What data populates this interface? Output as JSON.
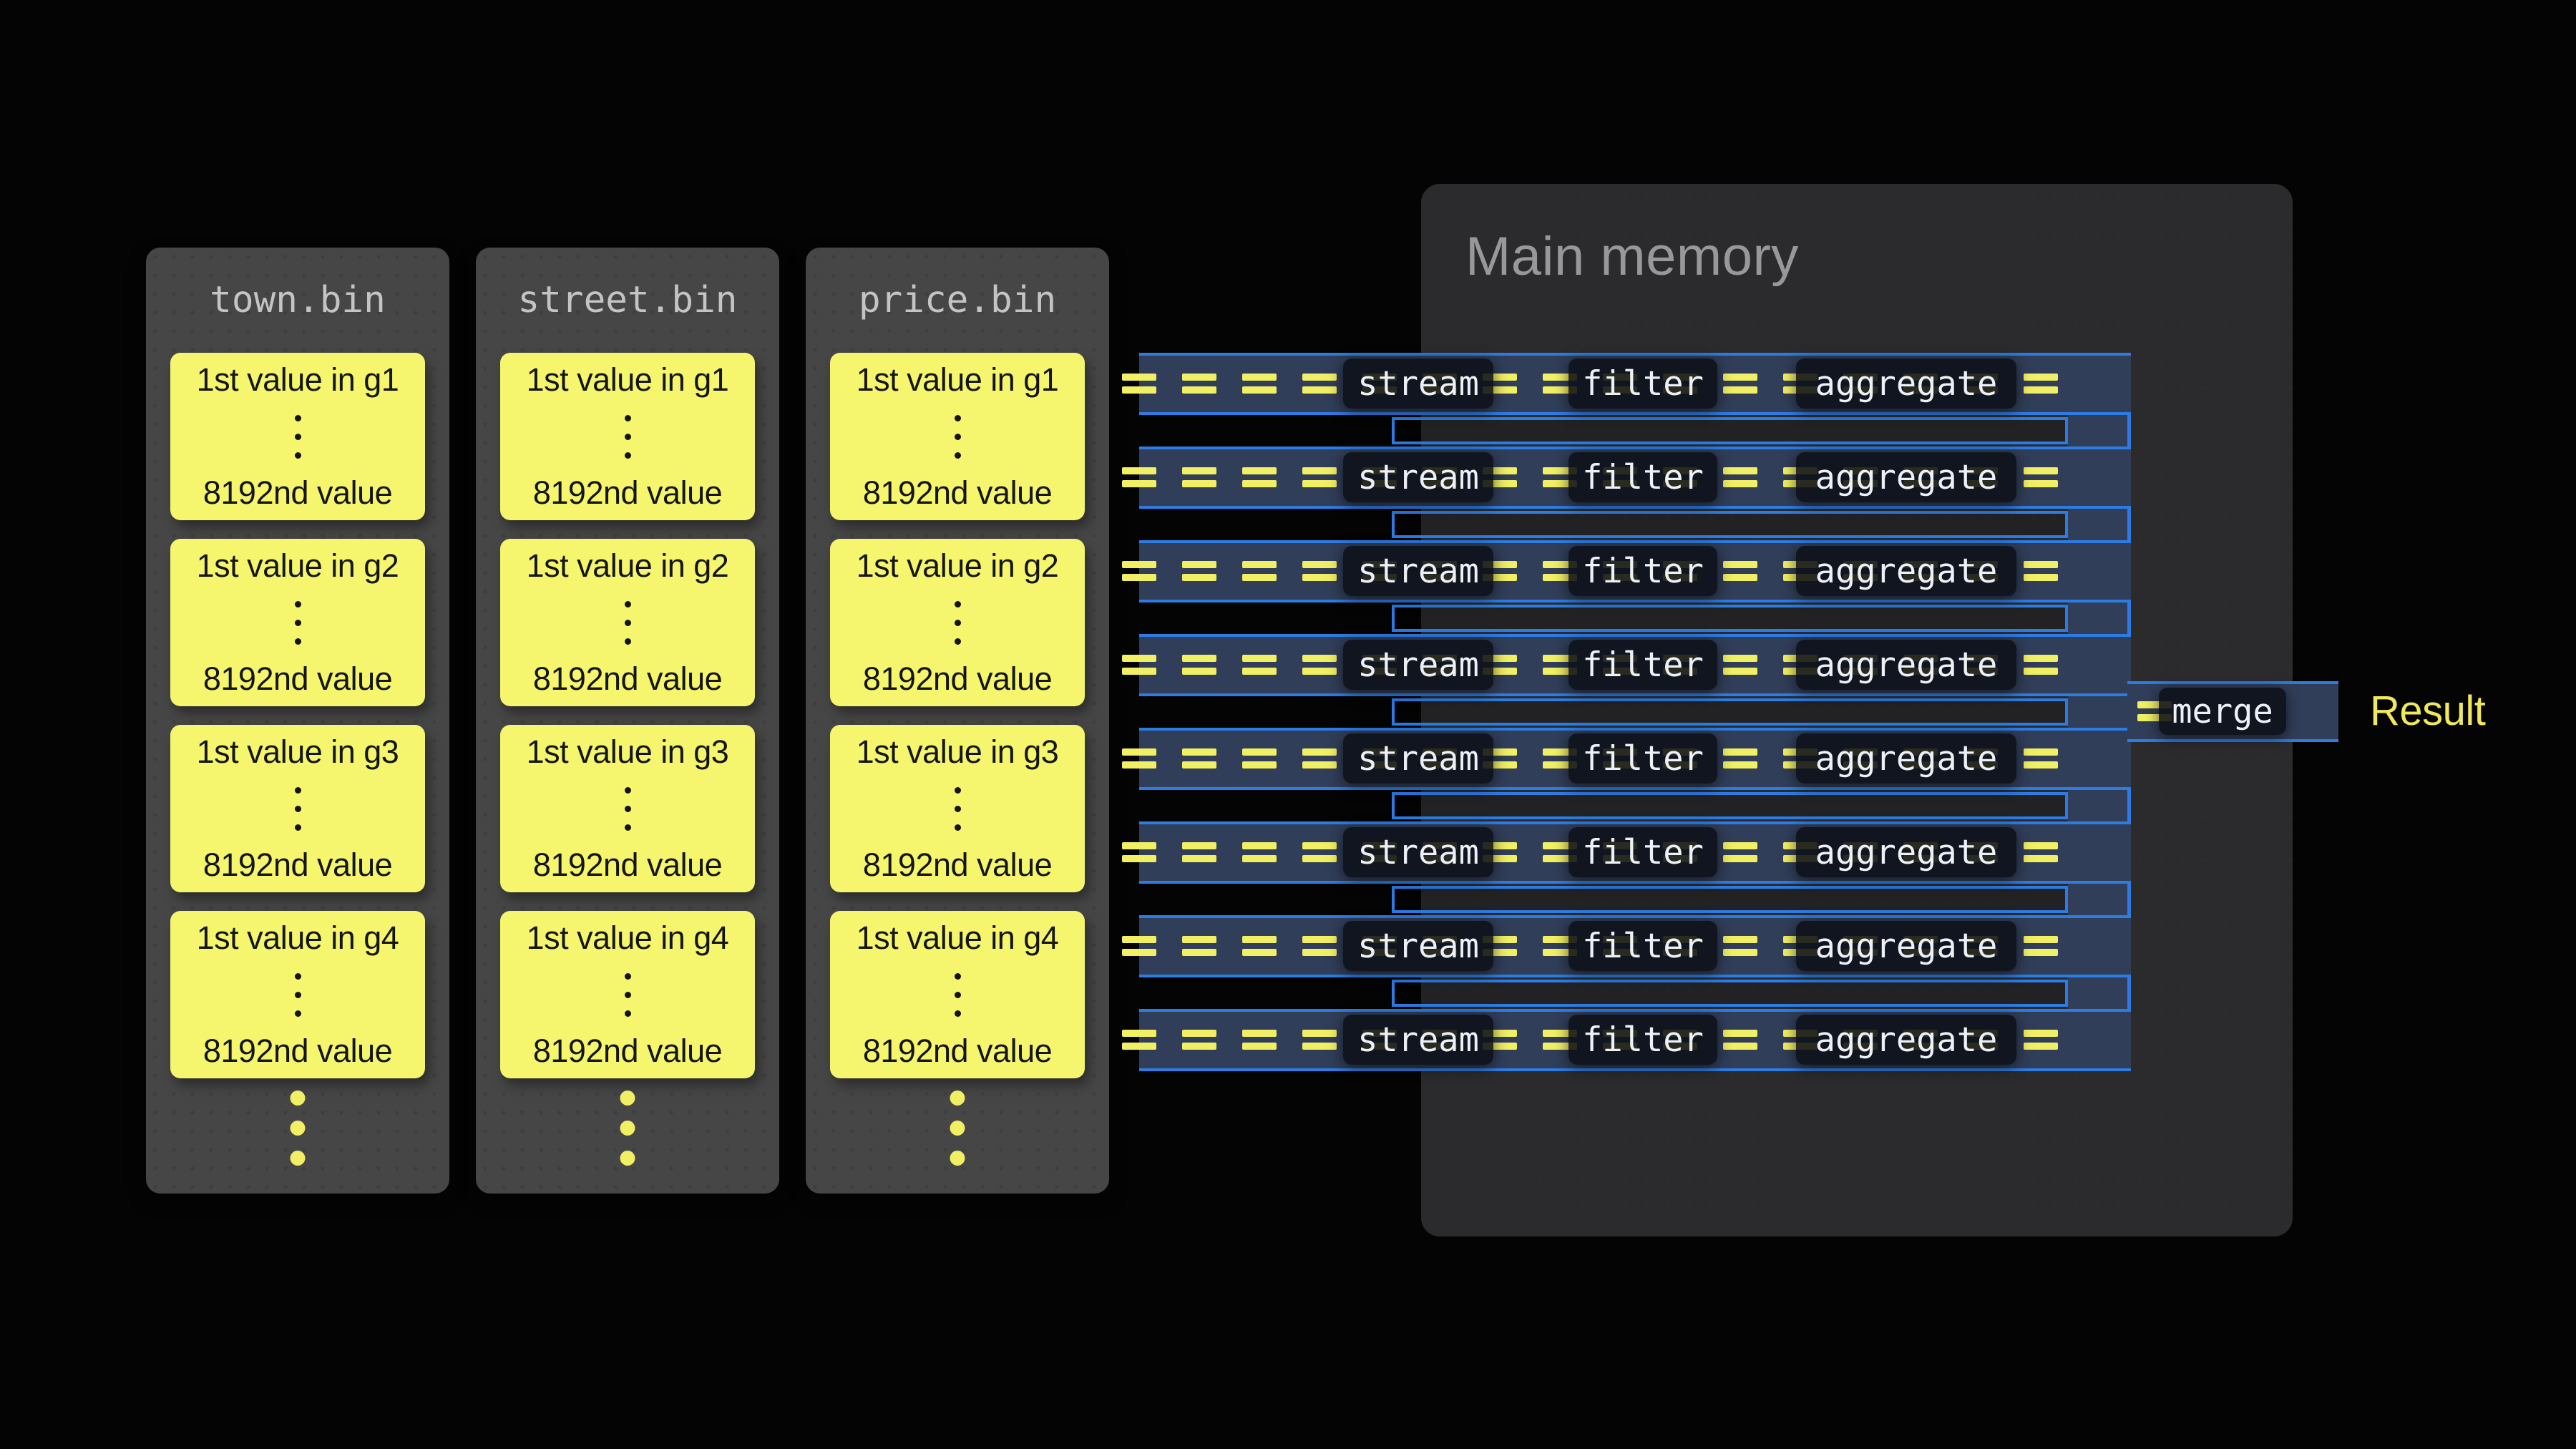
{
  "memory": {
    "title": "Main memory"
  },
  "columns": [
    {
      "file": "town.bin",
      "blocks": [
        {
          "first": "1st value in g1",
          "last": "8192nd value"
        },
        {
          "first": "1st value in g2",
          "last": "8192nd value"
        },
        {
          "first": "1st value in g3",
          "last": "8192nd value"
        },
        {
          "first": "1st value in g4",
          "last": "8192nd value"
        }
      ]
    },
    {
      "file": "street.bin",
      "blocks": [
        {
          "first": "1st value in g1",
          "last": "8192nd value"
        },
        {
          "first": "1st value in g2",
          "last": "8192nd value"
        },
        {
          "first": "1st value in g3",
          "last": "8192nd value"
        },
        {
          "first": "1st value in g4",
          "last": "8192nd value"
        }
      ]
    },
    {
      "file": "price.bin",
      "blocks": [
        {
          "first": "1st value in g1",
          "last": "8192nd value"
        },
        {
          "first": "1st value in g2",
          "last": "8192nd value"
        },
        {
          "first": "1st value in g3",
          "last": "8192nd value"
        },
        {
          "first": "1st value in g4",
          "last": "8192nd value"
        }
      ]
    }
  ],
  "pipeline": {
    "row_count": 8,
    "stages": [
      "stream",
      "filter",
      "aggregate"
    ],
    "merge_label": "merge",
    "result_label": "Result"
  },
  "colors": {
    "accent_blue": "#2c7ce4",
    "lane_navy": "#313e59",
    "dash_yellow": "#f1ef63",
    "block_yellow": "#f5f66d",
    "file_panel_gray": "#464646",
    "memory_panel_gray": "#2b2b2e",
    "result_yellow": "#f0e95c"
  }
}
